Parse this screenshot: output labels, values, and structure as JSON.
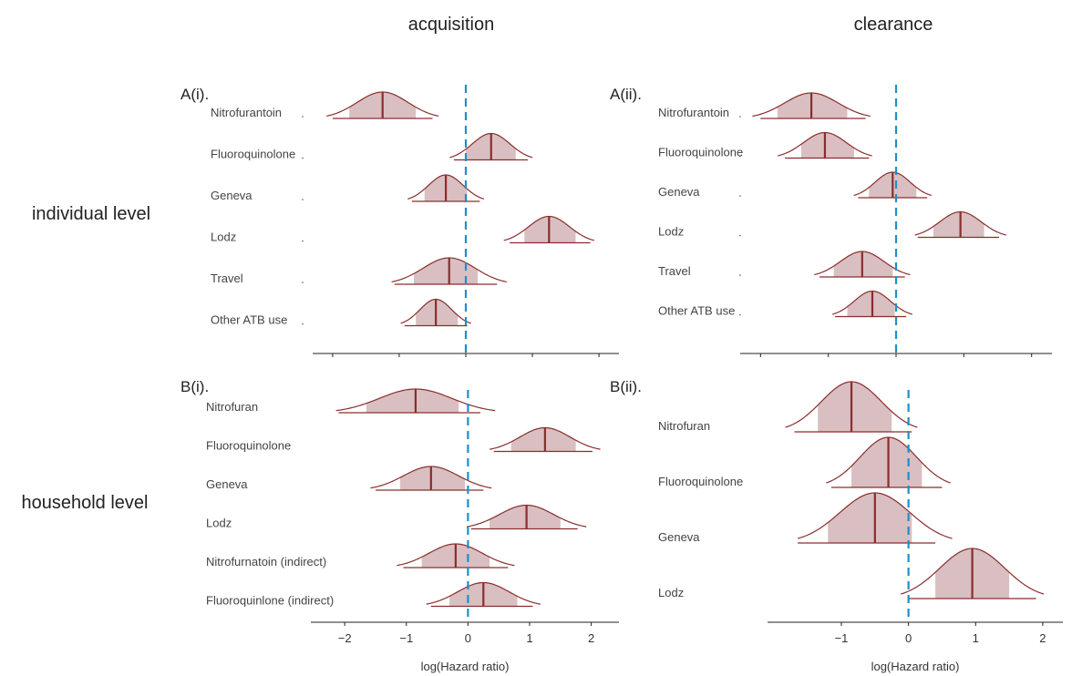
{
  "column_headers": [
    "acquisition",
    "clearance"
  ],
  "row_headers": [
    "individual level",
    "household level"
  ],
  "chart_data": [
    {
      "type": "ridgeline",
      "id": "A(i).",
      "column": "acquisition",
      "row": "individual level",
      "xlim": [
        -2.3,
        2.3
      ],
      "ticks": [
        -2,
        -1,
        0,
        1,
        2
      ],
      "show_tick_labels": false,
      "xlabel": "",
      "categories": [
        "Nitrofurantoin",
        "Fluoroquinolone",
        "Geneva",
        "Lodz",
        "Travel",
        "Other ATB use"
      ],
      "median": [
        -1.25,
        0.38,
        -0.3,
        1.25,
        -0.25,
        -0.45
      ],
      "ci80": [
        [
          -1.75,
          -0.75
        ],
        [
          0.0,
          0.75
        ],
        [
          -0.62,
          0.02
        ],
        [
          0.88,
          1.65
        ],
        [
          -0.78,
          0.18
        ],
        [
          -0.75,
          -0.12
        ]
      ],
      "ci95": [
        [
          -2.0,
          -0.5
        ],
        [
          -0.18,
          0.93
        ],
        [
          -0.81,
          0.21
        ],
        [
          0.66,
          1.87
        ],
        [
          -1.07,
          0.47
        ],
        [
          -0.92,
          0.02
        ]
      ]
    },
    {
      "type": "ridgeline",
      "id": "A(ii).",
      "column": "clearance",
      "row": "individual level",
      "xlim": [
        -2.3,
        2.3
      ],
      "ticks": [
        -2,
        -1,
        0,
        1,
        2
      ],
      "show_tick_labels": false,
      "xlabel": "",
      "categories": [
        "Nitrofurantoin",
        "Fluoroquinolone",
        "Geneva",
        "Lodz",
        "Travel",
        "Other ATB use"
      ],
      "median": [
        -1.25,
        -1.05,
        -0.05,
        0.95,
        -0.5,
        -0.35
      ],
      "ci80": [
        [
          -1.75,
          -0.72
        ],
        [
          -1.4,
          -0.62
        ],
        [
          -0.4,
          0.3
        ],
        [
          0.55,
          1.3
        ],
        [
          -0.92,
          -0.05
        ],
        [
          -0.72,
          -0.02
        ]
      ],
      "ci95": [
        [
          -2.0,
          -0.45
        ],
        [
          -1.64,
          -0.4
        ],
        [
          -0.56,
          0.46
        ],
        [
          0.32,
          1.52
        ],
        [
          -1.13,
          0.13
        ],
        [
          -0.9,
          0.15
        ]
      ]
    },
    {
      "type": "ridgeline",
      "id": "B(i).",
      "column": "acquisition",
      "row": "household level",
      "xlim": [
        -2.55,
        2.45
      ],
      "ticks": [
        -2,
        -1,
        0,
        1,
        2
      ],
      "tick_labels": [
        "−2",
        "−1",
        "0",
        "1",
        "2"
      ],
      "show_tick_labels": true,
      "xlabel": "log(Hazard ratio)",
      "categories": [
        "Nitrofuran",
        "Fluoroquinolone",
        "Geneva",
        "Lodz",
        "Nitrofurnatoin (indirect)",
        "Fluoroquinlone (indirect)"
      ],
      "median": [
        -0.85,
        1.25,
        -0.6,
        0.95,
        -0.2,
        0.25
      ],
      "ci80": [
        [
          -1.65,
          -0.15
        ],
        [
          0.7,
          1.75
        ],
        [
          -1.1,
          -0.05
        ],
        [
          0.35,
          1.5
        ],
        [
          -0.75,
          0.35
        ],
        [
          -0.3,
          0.8
        ]
      ],
      "ci95": [
        [
          -2.1,
          0.2
        ],
        [
          0.42,
          2.02
        ],
        [
          -1.5,
          0.25
        ],
        [
          0.05,
          1.78
        ],
        [
          -1.05,
          0.65
        ],
        [
          -0.6,
          1.05
        ]
      ]
    },
    {
      "type": "ridgeline",
      "id": "B(ii).",
      "column": "clearance",
      "row": "household level",
      "xlim": [
        -2.1,
        2.3
      ],
      "ticks": [
        -1,
        0,
        1,
        2
      ],
      "tick_labels": [
        "−1",
        "0",
        "1",
        "2"
      ],
      "show_tick_labels": true,
      "xlabel": "log(Hazard ratio)",
      "categories": [
        "Nitrofuran",
        "Fluoroquinolone",
        "Geneva",
        "Lodz"
      ],
      "median": [
        -0.85,
        -0.3,
        -0.5,
        0.95
      ],
      "ci80": [
        [
          -1.35,
          -0.25
        ],
        [
          -0.85,
          0.2
        ],
        [
          -1.2,
          0.05
        ],
        [
          0.4,
          1.5
        ]
      ],
      "ci95": [
        [
          -1.7,
          0.05
        ],
        [
          -1.15,
          0.5
        ],
        [
          -1.65,
          0.4
        ],
        [
          0.0,
          1.9
        ]
      ]
    }
  ]
}
